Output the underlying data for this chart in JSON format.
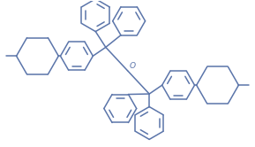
{
  "bg_color": "#ffffff",
  "line_color": "#5b75aa",
  "line_width": 1.1,
  "fig_width": 2.89,
  "fig_height": 1.66,
  "dpi": 100,
  "o_label_color": "#5b75aa"
}
